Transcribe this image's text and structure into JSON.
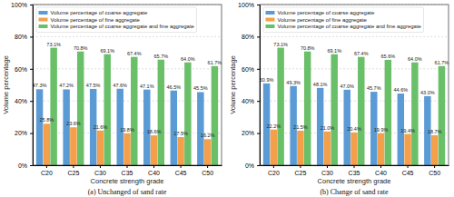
{
  "chart_data": [
    {
      "type": "bar",
      "title": "(a) Unchanged of sand rate",
      "x_label": "Concrete strength grade",
      "y_label": "Volume percentage",
      "categories": [
        "C20",
        "C25",
        "C30",
        "C35",
        "C40",
        "C45",
        "C50"
      ],
      "series": [
        {
          "name": "Volume percentage of coarse aggregate",
          "color": "#5b9bd5",
          "values": [
            47.3,
            47.2,
            47.5,
            47.6,
            47.1,
            46.5,
            45.5
          ],
          "value_labels": [
            "47.3%",
            "47.2%",
            "47.5%",
            "47.6%",
            "47.1%",
            "46.5%",
            "45.5%"
          ]
        },
        {
          "name": "Volume percentage of fine aggregate",
          "color": "#f4a04a",
          "values": [
            25.8,
            23.6,
            21.6,
            19.8,
            18.6,
            17.5,
            16.2
          ],
          "value_labels": [
            "25.8%",
            "23.6%",
            "21.6%",
            "19.8%",
            "18.6%",
            "17.5%",
            "16.2%"
          ]
        },
        {
          "name": "Volume percentage of coarse aggregate and fine aggregate",
          "color": "#6abf69",
          "values": [
            73.1,
            70.8,
            69.1,
            67.4,
            65.7,
            64.0,
            61.7
          ],
          "value_labels": [
            "73.1%",
            "70.8%",
            "69.1%",
            "67.4%",
            "65.7%",
            "64.0%",
            "61.7%"
          ]
        }
      ],
      "ylim": [
        0,
        100
      ],
      "yticks": [
        {
          "value": 0,
          "label": "0%"
        },
        {
          "value": 20,
          "label": "20%"
        },
        {
          "value": 40,
          "label": "40%"
        },
        {
          "value": 60,
          "label": "60%"
        },
        {
          "value": 80,
          "label": "80%"
        },
        {
          "value": 100,
          "label": "100%"
        }
      ],
      "grid": true,
      "legend": "upper left",
      "data_labels": true
    },
    {
      "type": "bar",
      "title": "(b) Change of sand rate",
      "x_label": "Concrete strength grade",
      "y_label": "Volume percentage",
      "categories": [
        "C20",
        "C25",
        "C30",
        "C35",
        "C40",
        "C45",
        "C50"
      ],
      "series": [
        {
          "name": "Volume percentage of coarse aggregate",
          "color": "#5b9bd5",
          "values": [
            50.9,
            49.3,
            48.1,
            47.0,
            45.7,
            44.6,
            43.0
          ],
          "value_labels": [
            "50.9%",
            "49.3%",
            "48.1%",
            "47.0%",
            "45.7%",
            "44.6%",
            "43.0%"
          ]
        },
        {
          "name": "Volume percentage of fine aggregate",
          "color": "#f4a04a",
          "values": [
            22.2,
            21.5,
            21.0,
            20.4,
            19.9,
            19.4,
            18.7
          ],
          "value_labels": [
            "22.2%",
            "21.5%",
            "21.0%",
            "20.4%",
            "19.9%",
            "19.4%",
            "18.7%"
          ]
        },
        {
          "name": "Volume percentage of coarse aggregate and fine aggregate",
          "color": "#6abf69",
          "values": [
            73.1,
            70.8,
            69.1,
            67.4,
            65.6,
            64.0,
            61.7
          ],
          "value_labels": [
            "73.1%",
            "70.8%",
            "69.1%",
            "67.4%",
            "65.6%",
            "64.0%",
            "61.7%"
          ]
        }
      ],
      "ylim": [
        0,
        100
      ],
      "yticks": [
        {
          "value": 0,
          "label": "0%"
        },
        {
          "value": 20,
          "label": "20%"
        },
        {
          "value": 40,
          "label": "40%"
        },
        {
          "value": 60,
          "label": "60%"
        },
        {
          "value": 80,
          "label": "80%"
        },
        {
          "value": 100,
          "label": "100%"
        }
      ],
      "grid": true,
      "legend": "upper left",
      "data_labels": true
    }
  ]
}
